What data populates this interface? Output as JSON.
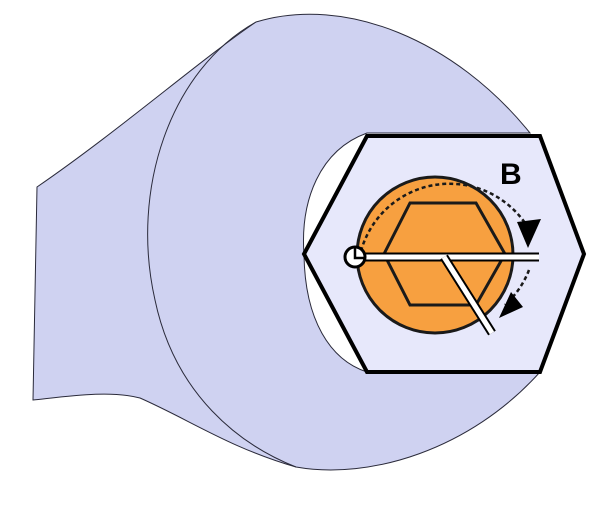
{
  "diagram": {
    "rotation_label": "B",
    "colors": {
      "wrench_body": "#cfd2f1",
      "wrench_outline": "#2a2a3a",
      "nut_face": "#e7e8fb",
      "nut_outline": "#000000",
      "bolt_fill": "#f7a040",
      "bolt_outline": "#1a1a1a",
      "hex_socket_outline": "#1a1a1a",
      "rotation_arc": "#1a1a1a",
      "arrow_fill": "#000000",
      "angle_line": "#ffffff",
      "angle_line_outline": "#000000",
      "pivot_marker": "#ffffff"
    }
  }
}
